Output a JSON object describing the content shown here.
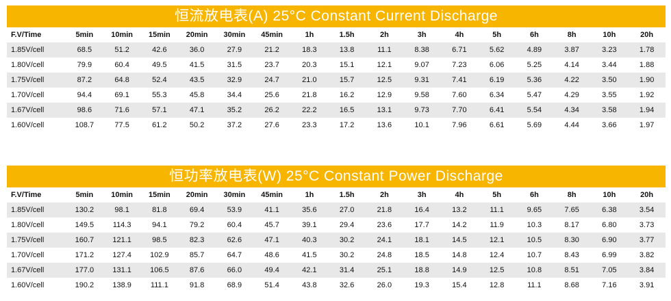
{
  "tables": [
    {
      "title": "恒流放电表(A) 25°C Constant Current Discharge",
      "header": [
        "F.V/Time",
        "5min",
        "10min",
        "15min",
        "20min",
        "30min",
        "45min",
        "1h",
        "1.5h",
        "2h",
        "3h",
        "4h",
        "5h",
        "6h",
        "8h",
        "10h",
        "20h"
      ],
      "rows": [
        [
          "1.85V/cell",
          "68.5",
          "51.2",
          "42.6",
          "36.0",
          "27.9",
          "21.2",
          "18.3",
          "13.8",
          "11.1",
          "8.38",
          "6.71",
          "5.62",
          "4.89",
          "3.87",
          "3.23",
          "1.78"
        ],
        [
          "1.80V/cell",
          "79.9",
          "60.4",
          "49.5",
          "41.5",
          "31.5",
          "23.7",
          "20.3",
          "15.1",
          "12.1",
          "9.07",
          "7.23",
          "6.06",
          "5.25",
          "4.14",
          "3.44",
          "1.88"
        ],
        [
          "1.75V/cell",
          "87.2",
          "64.8",
          "52.4",
          "43.5",
          "32.9",
          "24.7",
          "21.0",
          "15.7",
          "12.5",
          "9.31",
          "7.41",
          "6.19",
          "5.36",
          "4.22",
          "3.50",
          "1.90"
        ],
        [
          "1.70V/cell",
          "94.4",
          "69.1",
          "55.3",
          "45.8",
          "34.4",
          "25.6",
          "21.8",
          "16.2",
          "12.9",
          "9.58",
          "7.60",
          "6.34",
          "5.47",
          "4.29",
          "3.55",
          "1.92"
        ],
        [
          "1.67V/cell",
          "98.6",
          "71.6",
          "57.1",
          "47.1",
          "35.2",
          "26.2",
          "22.2",
          "16.5",
          "13.1",
          "9.73",
          "7.70",
          "6.41",
          "5.54",
          "4.34",
          "3.58",
          "1.94"
        ],
        [
          "1.60V/cell",
          "108.7",
          "77.5",
          "61.2",
          "50.2",
          "37.2",
          "27.6",
          "23.3",
          "17.2",
          "13.6",
          "10.1",
          "7.96",
          "6.61",
          "5.69",
          "4.44",
          "3.66",
          "1.97"
        ]
      ]
    },
    {
      "title": "恒功率放电表(W) 25°C Constant Power Discharge",
      "header": [
        "F.V/Time",
        "5min",
        "10min",
        "15min",
        "20min",
        "30min",
        "45min",
        "1h",
        "1.5h",
        "2h",
        "3h",
        "4h",
        "5h",
        "6h",
        "8h",
        "10h",
        "20h"
      ],
      "rows": [
        [
          "1.85V/cell",
          "130.2",
          "98.1",
          "81.8",
          "69.4",
          "53.9",
          "41.1",
          "35.6",
          "27.0",
          "21.8",
          "16.4",
          "13.2",
          "11.1",
          "9.65",
          "7.65",
          "6.38",
          "3.54"
        ],
        [
          "1.80V/cell",
          "149.5",
          "114.3",
          "94.1",
          "79.2",
          "60.4",
          "45.7",
          "39.1",
          "29.4",
          "23.6",
          "17.7",
          "14.2",
          "11.9",
          "10.3",
          "8.17",
          "6.80",
          "3.73"
        ],
        [
          "1.75V/cell",
          "160.7",
          "121.1",
          "98.5",
          "82.3",
          "62.6",
          "47.1",
          "40.3",
          "30.2",
          "24.1",
          "18.1",
          "14.5",
          "12.1",
          "10.5",
          "8.30",
          "6.90",
          "3.77"
        ],
        [
          "1.70V/cell",
          "171.2",
          "127.4",
          "102.9",
          "85.7",
          "64.7",
          "48.6",
          "41.5",
          "30.2",
          "24.8",
          "18.5",
          "14.8",
          "12.4",
          "10.7",
          "8.43",
          "6.99",
          "3.82"
        ],
        [
          "1.67V/cell",
          "177.0",
          "131.1",
          "106.5",
          "87.6",
          "66.0",
          "49.4",
          "42.1",
          "31.4",
          "25.1",
          "18.8",
          "14.9",
          "12.5",
          "10.8",
          "8.51",
          "7.05",
          "3.84"
        ],
        [
          "1.60V/cell",
          "190.2",
          "138.9",
          "111.1",
          "91.8",
          "68.9",
          "51.4",
          "43.8",
          "32.6",
          "26.0",
          "19.3",
          "15.4",
          "12.8",
          "11.1",
          "8.68",
          "7.16",
          "3.91"
        ]
      ]
    }
  ]
}
